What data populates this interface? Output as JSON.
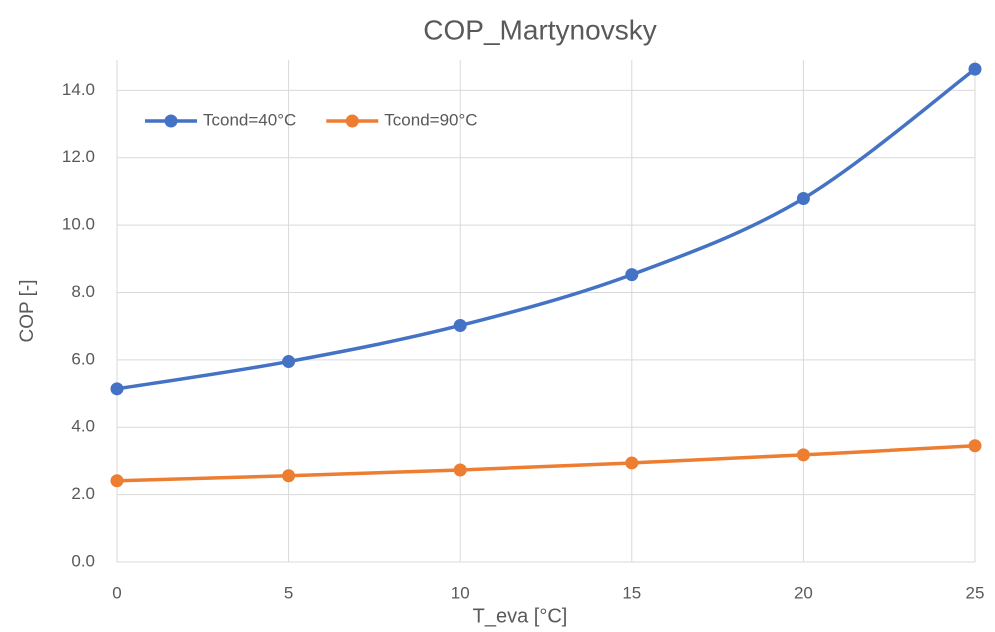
{
  "chart_data": {
    "type": "line",
    "title": "COP_Martynovsky",
    "x_label": "T_eva [°C]",
    "y_label": "COP [-]",
    "x": [
      0,
      5,
      10,
      15,
      20,
      25
    ],
    "series": [
      {
        "name": "Tcond=40°C",
        "color": "#4472c4",
        "values": [
          5.14,
          5.95,
          7.02,
          8.53,
          10.79,
          14.63
        ]
      },
      {
        "name": "Tcond=90°C",
        "color": "#ed7d31",
        "values": [
          2.41,
          2.56,
          2.73,
          2.94,
          3.18,
          3.45
        ]
      }
    ],
    "xlim": [
      0,
      25
    ],
    "xticks": [
      0,
      5,
      10,
      15,
      20,
      25
    ],
    "ylim": [
      0,
      14.9
    ],
    "yticks": [
      {
        "value": 0,
        "label": "0.0"
      },
      {
        "value": 2,
        "label": "2.0"
      },
      {
        "value": 4,
        "label": "4.0"
      },
      {
        "value": 6,
        "label": "6.0"
      },
      {
        "value": 8,
        "label": "8.0"
      },
      {
        "value": 10,
        "label": "10.0"
      },
      {
        "value": 12,
        "label": "12.0"
      },
      {
        "value": 14,
        "label": "14.0"
      }
    ],
    "grid": true,
    "legend": "top-left"
  }
}
